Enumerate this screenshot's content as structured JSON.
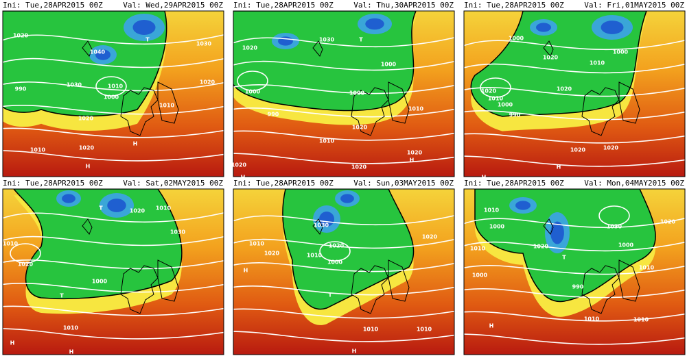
{
  "panels": [
    {
      "ini": "Ini: Tue,28APR2015 00Z",
      "val": "Val: Wed,29APR2015 00Z",
      "labels": [
        "1020",
        "1040",
        "1030",
        "1010",
        "1000",
        "990",
        "1020",
        "1010",
        "1020",
        "1030",
        "1020",
        "1010",
        "H",
        "H",
        "T",
        "T"
      ]
    },
    {
      "ini": "Ini: Tue,28APR2015 00Z",
      "val": "Val: Thu,30APR2015 00Z",
      "labels": [
        "1020",
        "1030",
        "1000",
        "1000",
        "1000",
        "990",
        "1010",
        "1020",
        "1010",
        "1020",
        "1020",
        "1020",
        "H",
        "H",
        "T"
      ]
    },
    {
      "ini": "Ini: Tue,28APR2015 00Z",
      "val": "Val: Fri,01MAY2015 00Z",
      "labels": [
        "1000",
        "1020",
        "1010",
        "1000",
        "1010",
        "1000",
        "990",
        "1020",
        "1020",
        "1020",
        "1010",
        "1020",
        "H",
        "H"
      ]
    },
    {
      "ini": "Ini: Tue,28APR2015 00Z",
      "val": "Val: Sat,02MAY2015 00Z",
      "labels": [
        "1020",
        "1010",
        "1030",
        "1010",
        "1020",
        "1000",
        "1010",
        "H",
        "H",
        "T",
        "T"
      ]
    },
    {
      "ini": "Ini: Tue,28APR2015 00Z",
      "val": "Val: Sun,03MAY2015 00Z",
      "labels": [
        "1020",
        "1010",
        "1030",
        "1020",
        "1000",
        "1010",
        "1020",
        "1010",
        "1010",
        "H",
        "H",
        "T"
      ]
    },
    {
      "ini": "Ini: Tue,28APR2015 00Z",
      "val": "Val: Mon,04MAY2015 00Z",
      "labels": [
        "1010",
        "1000",
        "1010",
        "1000",
        "1030",
        "1020",
        "1020",
        "1000",
        "990",
        "1010",
        "1010",
        "1010",
        "H",
        "T"
      ]
    }
  ]
}
